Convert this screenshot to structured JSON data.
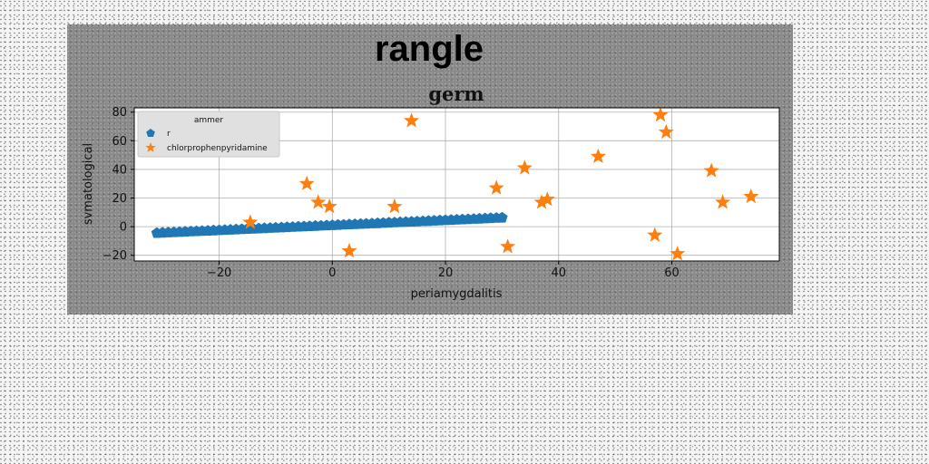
{
  "figure_title": "rangle",
  "chart_data": {
    "type": "scatter",
    "title": "germ",
    "xlabel": "periamygdalitis",
    "ylabel": "svmatological",
    "xlim": [
      -35,
      79
    ],
    "ylim": [
      -24,
      83
    ],
    "xticks": [
      -20,
      0,
      20,
      40,
      60
    ],
    "yticks": [
      -20,
      0,
      20,
      40,
      60,
      80
    ],
    "grid": true,
    "legend": {
      "title": "ammer",
      "location": "top-left"
    },
    "series": [
      {
        "name": "r",
        "marker": "pentagon",
        "color": "#1f77b4",
        "x_start": -31,
        "x_end": 30,
        "point_count": 62,
        "y_start": -4.5,
        "y_end": 6.2
      },
      {
        "name": "chlorprophenpyridamine",
        "marker": "star",
        "color": "#ff7f0e",
        "points": [
          {
            "x": -14.5,
            "y": 3
          },
          {
            "x": -4.5,
            "y": 30
          },
          {
            "x": -2.5,
            "y": 17
          },
          {
            "x": -0.5,
            "y": 14
          },
          {
            "x": 3,
            "y": -17
          },
          {
            "x": 11,
            "y": 14
          },
          {
            "x": 14,
            "y": 74
          },
          {
            "x": 29,
            "y": 27
          },
          {
            "x": 31,
            "y": -14
          },
          {
            "x": 34,
            "y": 41
          },
          {
            "x": 37,
            "y": 17
          },
          {
            "x": 38,
            "y": 19
          },
          {
            "x": 47,
            "y": 49
          },
          {
            "x": 57,
            "y": -6
          },
          {
            "x": 58,
            "y": 78
          },
          {
            "x": 59,
            "y": 66
          },
          {
            "x": 61,
            "y": -19
          },
          {
            "x": 67,
            "y": 39
          },
          {
            "x": 69,
            "y": 17
          },
          {
            "x": 74,
            "y": 21
          }
        ]
      }
    ]
  }
}
